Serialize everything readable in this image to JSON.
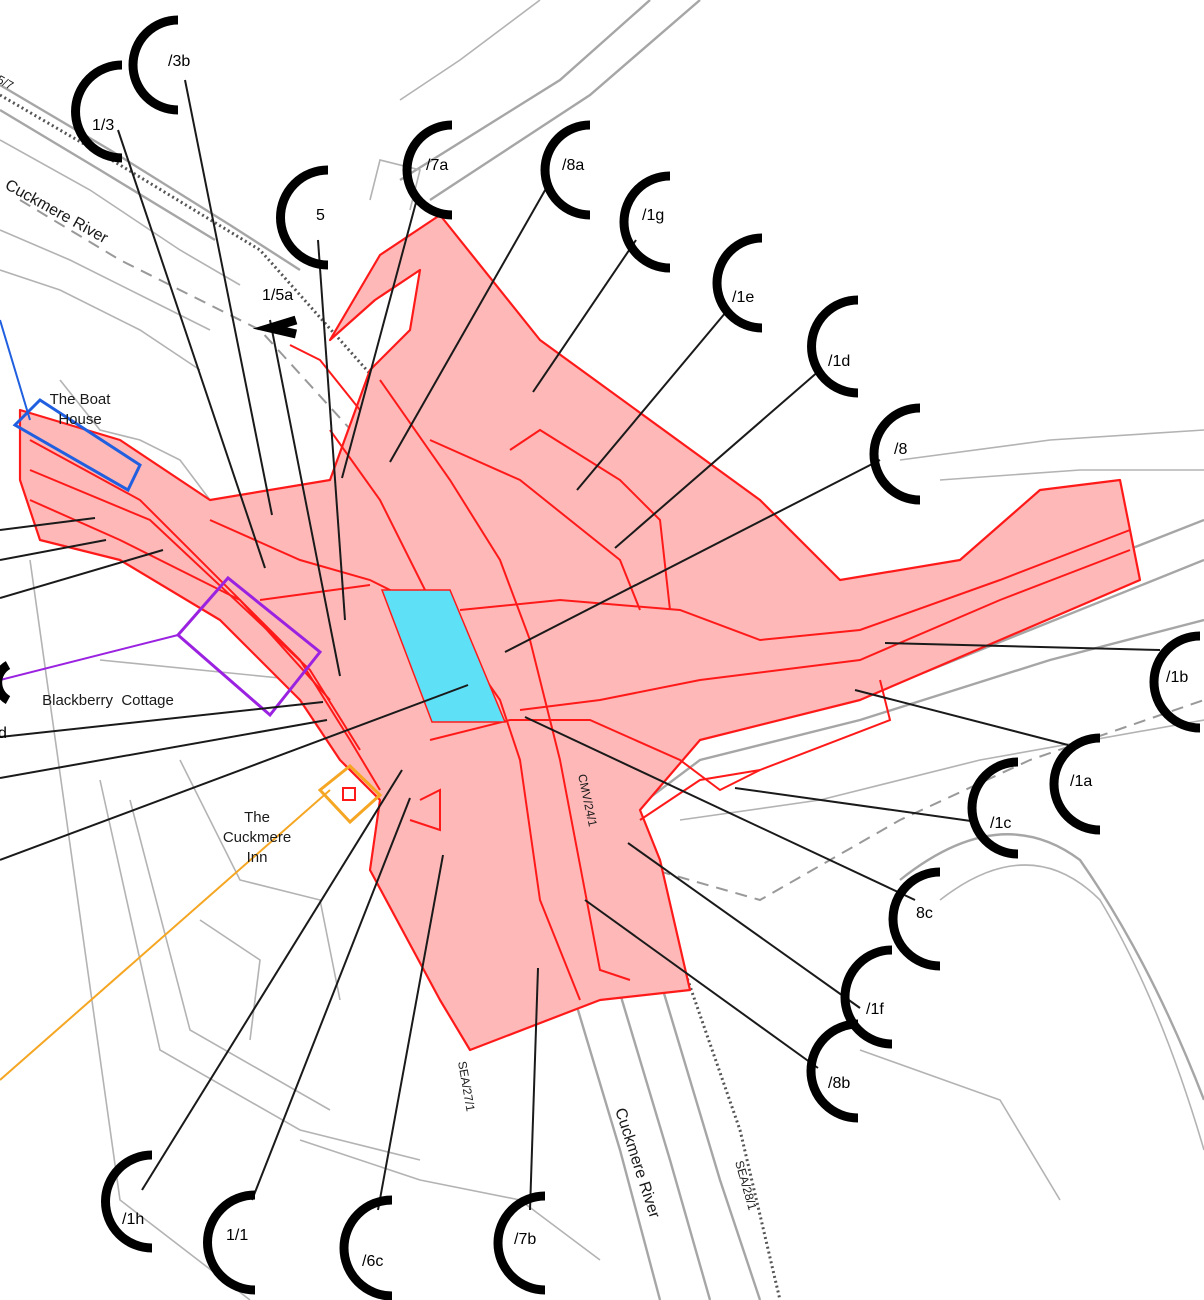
{
  "places": {
    "boat_house_l1": "The Boat",
    "boat_house_l2": "House",
    "blackberry_cottage": "Blackberry  Cottage",
    "cuckmere_inn_l1": "The",
    "cuckmere_inn_l2": "Cuckmere",
    "cuckmere_inn_l3": "Inn"
  },
  "rivers": {
    "upper": "Cuckmere River",
    "lower": "Cuckmere River"
  },
  "codes": {
    "top_left": "5/7",
    "cmv": "CMV/24/1",
    "sea27": "SEA/27/1",
    "sea28": "SEA/28/1"
  },
  "cut_labels": {
    "left_d": "d"
  },
  "refs": [
    {
      "id": "3b",
      "label": "/3b"
    },
    {
      "id": "1-3",
      "label": "1/3"
    },
    {
      "id": "5",
      "label": "5"
    },
    {
      "id": "1-5a",
      "label": "1/5a"
    },
    {
      "id": "7a",
      "label": "/7a"
    },
    {
      "id": "8a",
      "label": "/8a"
    },
    {
      "id": "1g",
      "label": "/1g"
    },
    {
      "id": "1e",
      "label": "/1e"
    },
    {
      "id": "1d",
      "label": "/1d"
    },
    {
      "id": "8",
      "label": "/8"
    },
    {
      "id": "1b",
      "label": "/1b"
    },
    {
      "id": "1a",
      "label": "/1a"
    },
    {
      "id": "1c",
      "label": "/1c"
    },
    {
      "id": "8c",
      "label": "8c"
    },
    {
      "id": "1f",
      "label": "/1f"
    },
    {
      "id": "8b",
      "label": "/8b"
    },
    {
      "id": "7b",
      "label": "/7b"
    },
    {
      "id": "6c",
      "label": "/6c"
    },
    {
      "id": "1-1",
      "label": "1/1"
    },
    {
      "id": "1h",
      "label": "/1h"
    }
  ],
  "colors": {
    "zone_fill": "#ffb8b8",
    "zone_stroke": "#ff1a1a",
    "highlight_fill": "#5ee0f7",
    "boat_house_outline": "#1f5fe0",
    "cottage_outline": "#9a22e0",
    "inn_outline": "#f5a623"
  }
}
